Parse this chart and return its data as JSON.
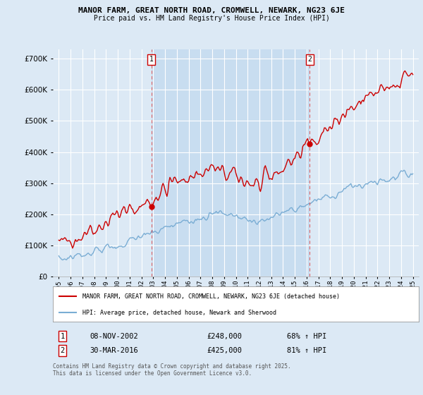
{
  "title1": "MANOR FARM, GREAT NORTH ROAD, CROMWELL, NEWARK, NG23 6JE",
  "title2": "Price paid vs. HM Land Registry's House Price Index (HPI)",
  "bg_color": "#dce9f5",
  "plot_bg_color": "#dce9f5",
  "shade_color": "#c8ddf0",
  "grid_color": "#ffffff",
  "red_color": "#cc0000",
  "blue_color": "#7aadd4",
  "marker1_x": 2002.85,
  "marker1_y": 248000,
  "marker2_x": 2016.25,
  "marker2_y": 425000,
  "ylim": [
    0,
    730000
  ],
  "xlim": [
    1994.5,
    2025.5
  ],
  "legend_label_red": "MANOR FARM, GREAT NORTH ROAD, CROMWELL, NEWARK, NG23 6JE (detached house)",
  "legend_label_blue": "HPI: Average price, detached house, Newark and Sherwood",
  "sale1_date": "08-NOV-2002",
  "sale1_price": "£248,000",
  "sale1_hpi": "68% ↑ HPI",
  "sale2_date": "30-MAR-2016",
  "sale2_price": "£425,000",
  "sale2_hpi": "81% ↑ HPI",
  "footer": "Contains HM Land Registry data © Crown copyright and database right 2025.\nThis data is licensed under the Open Government Licence v3.0."
}
